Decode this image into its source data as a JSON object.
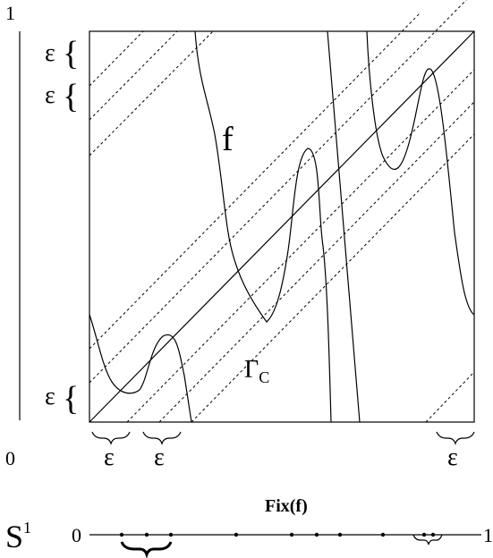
{
  "labels": {
    "axis_top": "1",
    "axis_bottom": "0",
    "epsilon": "ε",
    "brace_left": "{",
    "function": "f",
    "curve_gamma": "Γ",
    "curve_gamma_sub": "C",
    "middle_label": "Fix(f)",
    "circle": "S",
    "circle_sup": "1",
    "line_start": "0",
    "line_end": "1"
  }
}
